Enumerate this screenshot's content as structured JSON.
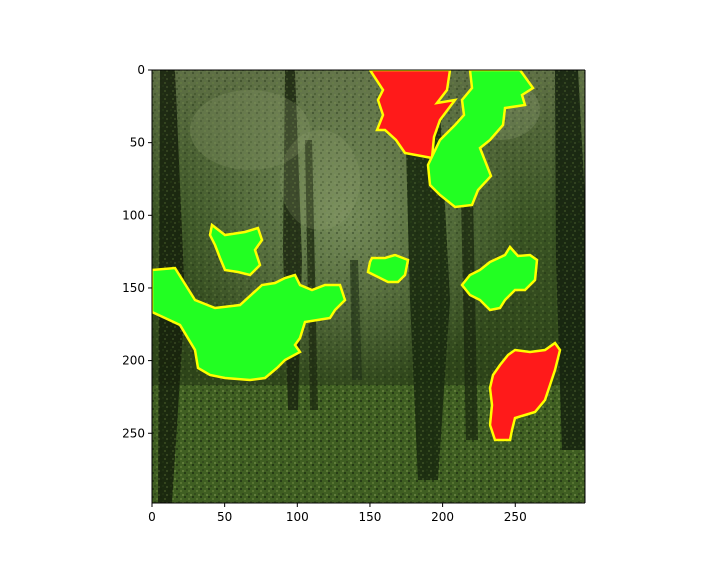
{
  "figure": {
    "x_axis": {
      "ticks": [
        0,
        50,
        100,
        150,
        200,
        250
      ],
      "range": [
        0,
        298
      ]
    },
    "y_axis": {
      "ticks": [
        0,
        50,
        100,
        150,
        200,
        250
      ],
      "range": [
        0,
        298
      ],
      "inverted": true
    },
    "image": {
      "description_type": "photo of a dense green forest with tree trunks and undergrowth",
      "overlay_regions": [
        {
          "label_color": "red",
          "outline_color": "yellow"
        },
        {
          "label_color": "green",
          "outline_color": "yellow"
        }
      ]
    },
    "colors": {
      "region_red": "#ff1a1a",
      "region_green": "#22ff22",
      "outline": "#ffff00",
      "canopy_dark": "#1c2a12",
      "canopy_mid": "#3d5a22",
      "ground": "#4a6a2a"
    }
  }
}
